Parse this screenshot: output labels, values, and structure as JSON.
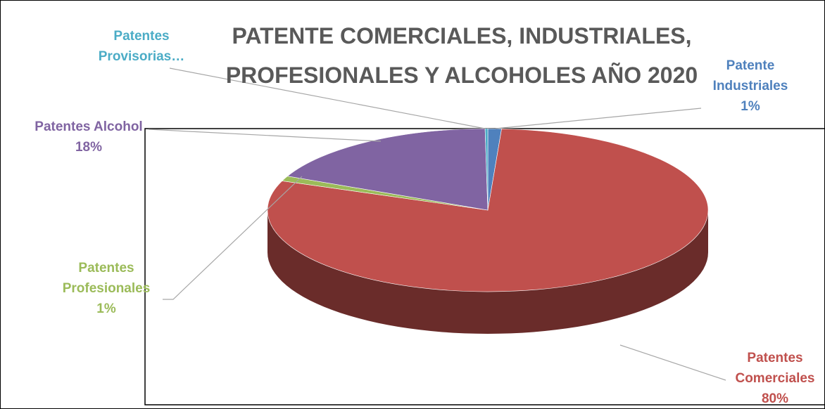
{
  "chart_data": {
    "type": "pie3d",
    "title": "PATENTE COMERCIALES, INDUSTRIALES, PROFESIONALES Y ALCOHOLES AÑO 2020",
    "categories": [
      "Patente Industriales",
      "Patentes Comerciales",
      "Patentes Profesionales",
      "Patentes Alcohol",
      "Patentes Provisorias…"
    ],
    "values": [
      1,
      80,
      1,
      18,
      0.2
    ],
    "value_labels": [
      "1%",
      "80%",
      "1%",
      "18%",
      null
    ],
    "colors": [
      "#4f81bd",
      "#c0504d",
      "#9bbb59",
      "#8064a2",
      "#4bacc6"
    ]
  }
}
